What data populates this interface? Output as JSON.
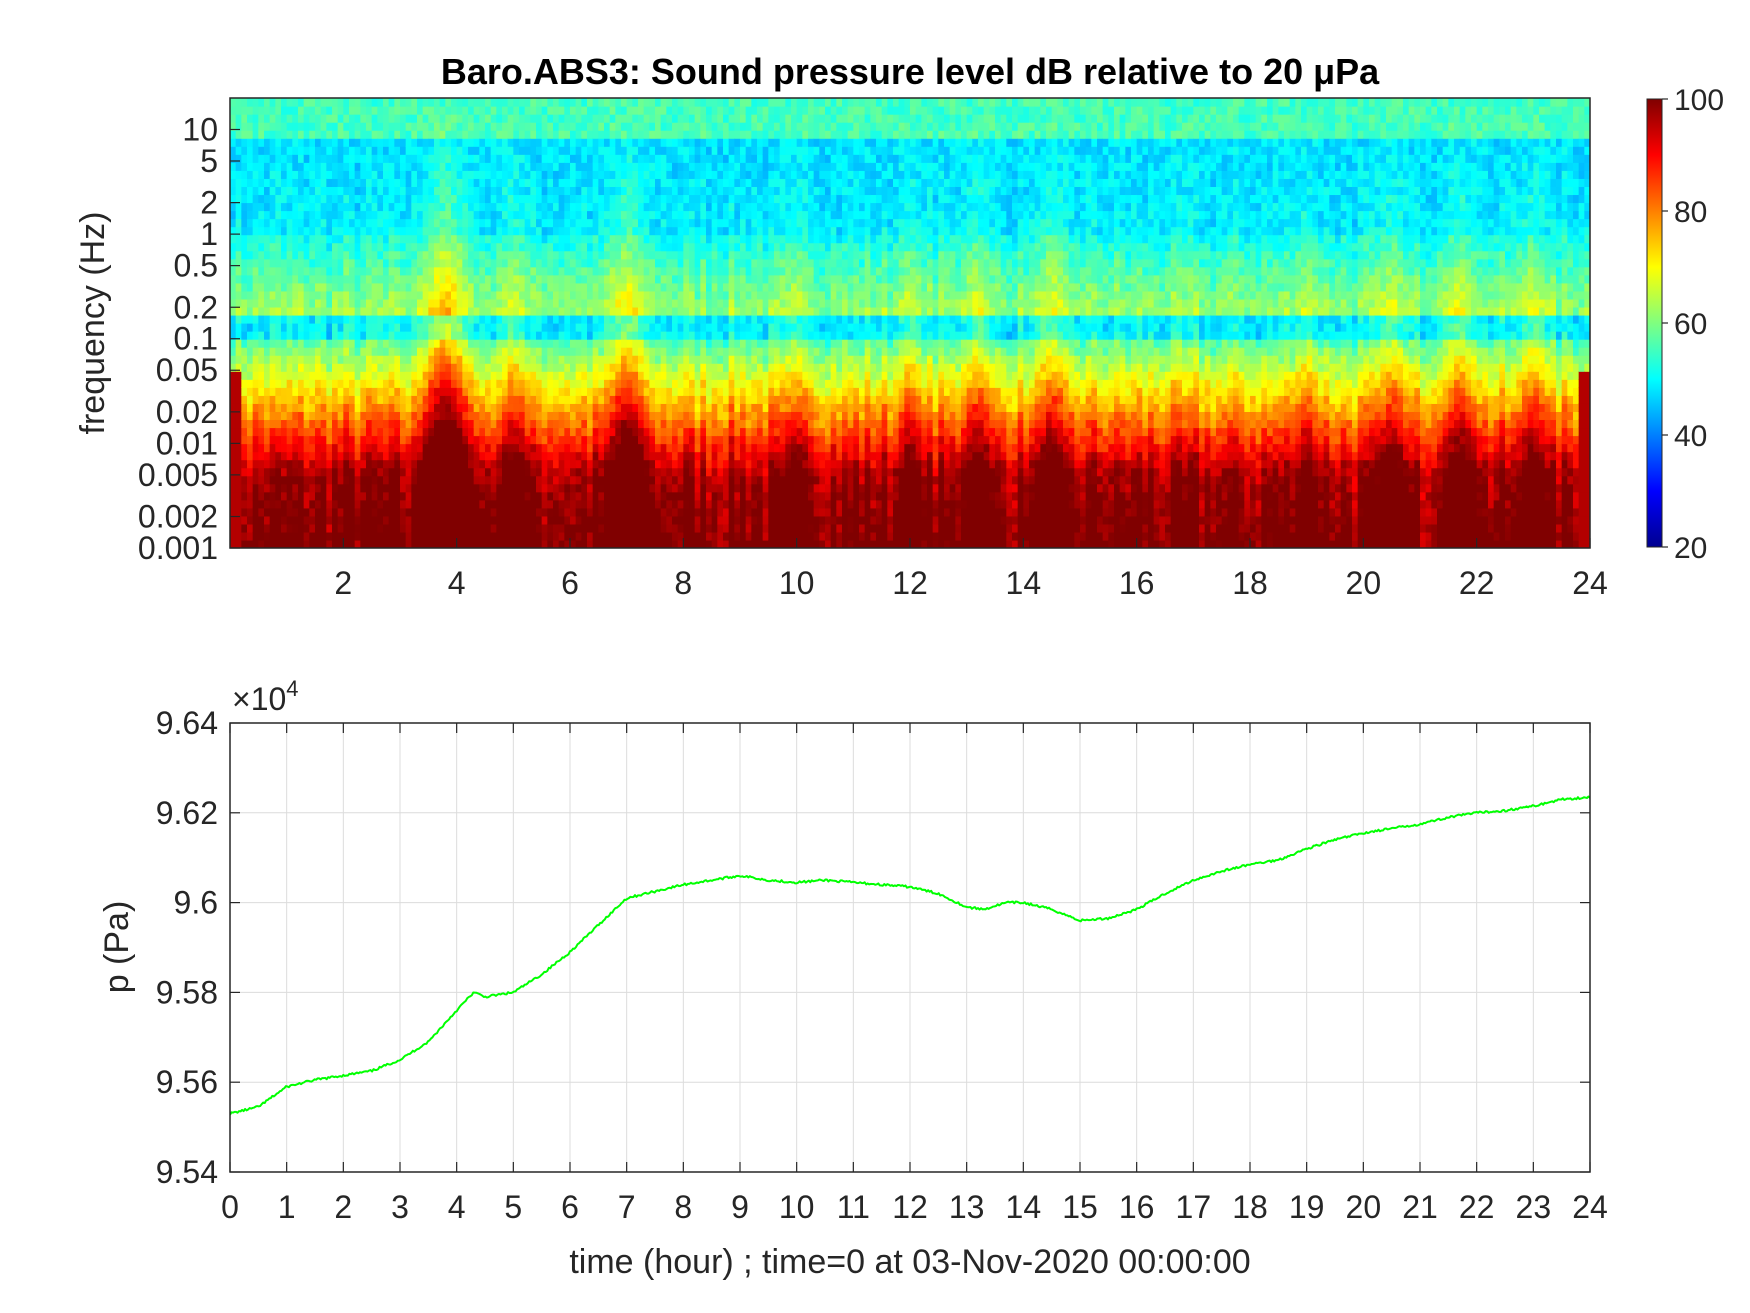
{
  "chart_data": [
    {
      "type": "heatmap",
      "title": "Baro.ABS3: Sound pressure level dB relative to 20 μPa",
      "ylabel": "frequency (Hz)",
      "xlabel": "",
      "xlim": [
        0,
        24
      ],
      "x_ticks": [
        2,
        4,
        6,
        8,
        10,
        12,
        14,
        16,
        18,
        20,
        22,
        24
      ],
      "yscale": "log",
      "ylim": [
        0.001,
        20
      ],
      "y_ticks": [
        0.001,
        0.002,
        0.005,
        0.01,
        0.02,
        0.05,
        0.1,
        0.2,
        0.5,
        1,
        2,
        5,
        10
      ],
      "y_tick_labels": [
        "0.001",
        "0.002",
        "0.005",
        "0.01",
        "0.02",
        "0.05",
        "0.1",
        "0.2",
        "0.5",
        "1",
        "2",
        "5",
        "10"
      ],
      "colormap": "jet",
      "clim": [
        20,
        100
      ],
      "colorbar_ticks": [
        20,
        40,
        60,
        80,
        100
      ],
      "colorbar_placement": "right",
      "events": [
        {
          "time": 3.8,
          "strength": 1.0,
          "width": 0.45
        },
        {
          "time": 5.0,
          "strength": 0.55,
          "width": 0.3
        },
        {
          "time": 7.0,
          "strength": 0.75,
          "width": 0.4
        },
        {
          "time": 10.0,
          "strength": 0.45,
          "width": 0.3
        },
        {
          "time": 12.0,
          "strength": 0.5,
          "width": 0.25
        },
        {
          "time": 13.2,
          "strength": 0.55,
          "width": 0.3
        },
        {
          "time": 14.5,
          "strength": 0.6,
          "width": 0.35
        },
        {
          "time": 19.0,
          "strength": 0.45,
          "width": 0.25
        },
        {
          "time": 20.5,
          "strength": 0.55,
          "width": 0.3
        },
        {
          "time": 21.7,
          "strength": 0.6,
          "width": 0.35
        },
        {
          "time": 23.0,
          "strength": 0.55,
          "width": 0.3
        }
      ]
    },
    {
      "type": "line",
      "title": "",
      "xlabel": "time (hour) ; time=0 at 03-Nov-2020 00:00:00",
      "ylabel": "p (Pa)",
      "xlim": [
        0,
        24
      ],
      "x_ticks": [
        0,
        1,
        2,
        3,
        4,
        5,
        6,
        7,
        8,
        9,
        10,
        11,
        12,
        13,
        14,
        15,
        16,
        17,
        18,
        19,
        20,
        21,
        22,
        23,
        24
      ],
      "ylim": [
        95400,
        96400
      ],
      "y_ticks": [
        95400,
        95600,
        95800,
        96000,
        96200,
        96400
      ],
      "y_tick_labels": [
        "9.54",
        "9.56",
        "9.58",
        "9.6",
        "9.62",
        "9.64"
      ],
      "exponent_label": "×10",
      "exponent_power": "4",
      "grid": true,
      "series": [
        {
          "color": "#00ff00",
          "x": [
            0,
            0.5,
            1,
            1.5,
            2,
            2.5,
            3,
            3.5,
            4,
            4.3,
            4.5,
            5,
            5.5,
            6,
            6.5,
            7,
            7.5,
            8,
            8.5,
            9,
            9.5,
            10,
            10.5,
            11,
            11.5,
            12,
            12.5,
            13,
            13.3,
            13.7,
            14,
            14.5,
            15,
            15.5,
            16,
            16.5,
            17,
            17.5,
            18,
            18.5,
            19,
            19.5,
            20,
            20.5,
            21,
            21.5,
            22,
            22.5,
            23,
            23.5,
            24
          ],
          "values": [
            95530,
            95545,
            95590,
            95605,
            95615,
            95625,
            95650,
            95690,
            95760,
            95800,
            95790,
            95800,
            95840,
            95890,
            95950,
            96010,
            96025,
            96040,
            96050,
            96060,
            96050,
            96045,
            96050,
            96045,
            96040,
            96035,
            96020,
            95990,
            95985,
            96000,
            96000,
            95985,
            95960,
            95965,
            95985,
            96020,
            96050,
            96070,
            96085,
            96095,
            96120,
            96140,
            96155,
            96165,
            96175,
            96190,
            96200,
            96205,
            96215,
            96230,
            96235
          ]
        }
      ]
    }
  ]
}
